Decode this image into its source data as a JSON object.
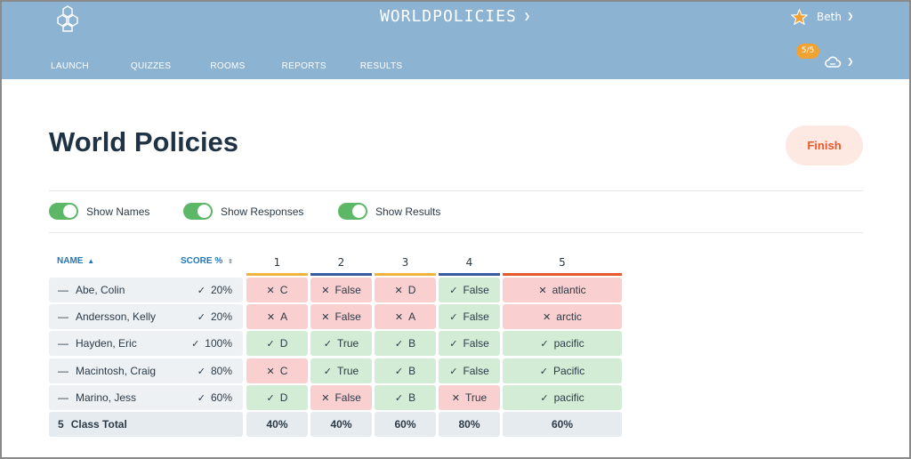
{
  "header": {
    "app_title": "WORLDPOLICIES",
    "nav": [
      "LAUNCH",
      "QUIZZES",
      "ROOMS",
      "REPORTS",
      "RESULTS"
    ],
    "user_name": "Beth",
    "badge": "5/5"
  },
  "page": {
    "title": "World Policies",
    "finish_label": "Finish"
  },
  "toggles": {
    "names": "Show Names",
    "responses": "Show Responses",
    "results": "Show Results"
  },
  "table": {
    "name_header": "NAME",
    "score_header": "SCORE %",
    "questions": [
      "1",
      "2",
      "3",
      "4",
      "5"
    ],
    "rows": [
      {
        "name": "Abe, Colin",
        "score": "20%",
        "answers": [
          "C",
          "False",
          "D",
          "False",
          "atlantic"
        ],
        "correct": [
          false,
          false,
          false,
          true,
          false
        ]
      },
      {
        "name": "Andersson, Kelly",
        "score": "20%",
        "answers": [
          "A",
          "False",
          "A",
          "False",
          "arctic"
        ],
        "correct": [
          false,
          false,
          false,
          true,
          false
        ]
      },
      {
        "name": "Hayden, Eric",
        "score": "100%",
        "answers": [
          "D",
          "True",
          "B",
          "False",
          "pacific"
        ],
        "correct": [
          true,
          true,
          true,
          true,
          true
        ]
      },
      {
        "name": "Macintosh, Craig",
        "score": "80%",
        "answers": [
          "C",
          "True",
          "B",
          "False",
          "Pacific"
        ],
        "correct": [
          false,
          true,
          true,
          true,
          true
        ]
      },
      {
        "name": "Marino, Jess",
        "score": "60%",
        "answers": [
          "D",
          "False",
          "B",
          "True",
          "pacific"
        ],
        "correct": [
          true,
          false,
          true,
          false,
          true
        ]
      }
    ],
    "total": {
      "count": "5",
      "label": "Class Total",
      "values": [
        "40%",
        "40%",
        "60%",
        "80%",
        "60%"
      ]
    }
  },
  "colors": {
    "header_bg": "#8db3d2",
    "accent_blue": "#2377b8",
    "correct_bg": "#d2ecd6",
    "incorrect_bg": "#f9cfcf",
    "toggle_on": "#5cb766",
    "finish_text": "#e8592b",
    "question_underline": [
      "#f2b33d",
      "#3a5ba0",
      "#f2b33d",
      "#3a5ba0",
      "#e8592b"
    ]
  }
}
